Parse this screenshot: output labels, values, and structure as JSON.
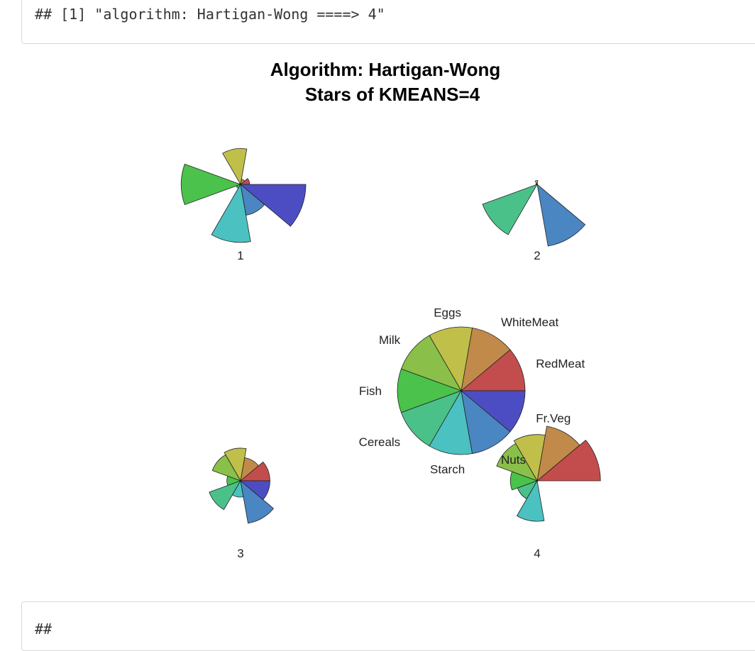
{
  "console": {
    "top_output": "## [1] \"algorithm: Hartigan-Wong ====> 4\"",
    "bottom_output": "##"
  },
  "chart_data": {
    "type": "star",
    "title": "Algorithm: Hartigan-Wong",
    "subtitle": "Stars of KMEANS=4",
    "variables": [
      "RedMeat",
      "WhiteMeat",
      "Eggs",
      "Milk",
      "Fish",
      "Cereals",
      "Starch",
      "Nuts",
      "Fr.Veg"
    ],
    "colors": [
      "#C34D4D",
      "#C18A4A",
      "#BFBF4A",
      "#8AC04A",
      "#4BC24B",
      "#4BC18A",
      "#4BC1C1",
      "#4A86C1",
      "#4D4DC3"
    ],
    "stars": [
      {
        "label": "1",
        "values": [
          0.14,
          0.08,
          0.55,
          0.02,
          0.91,
          0.07,
          0.89,
          0.48,
          1.0
        ]
      },
      {
        "label": "2",
        "values": [
          0.0,
          0.0,
          0.06,
          0.02,
          0.02,
          0.89,
          0.0,
          0.96,
          0.0
        ]
      },
      {
        "label": "3",
        "values": [
          0.45,
          0.36,
          0.5,
          0.46,
          0.21,
          0.51,
          0.25,
          0.66,
          0.45
        ]
      },
      {
        "label": "4",
        "values": [
          0.97,
          0.85,
          0.71,
          0.66,
          0.41,
          0.32,
          0.62,
          0.01,
          0.0
        ]
      }
    ],
    "key_labels": [
      "RedMeat",
      "WhiteMeat",
      "Eggs",
      "Milk",
      "Fish",
      "Cereals",
      "Starch",
      "Nuts",
      "Fr.Veg"
    ]
  }
}
